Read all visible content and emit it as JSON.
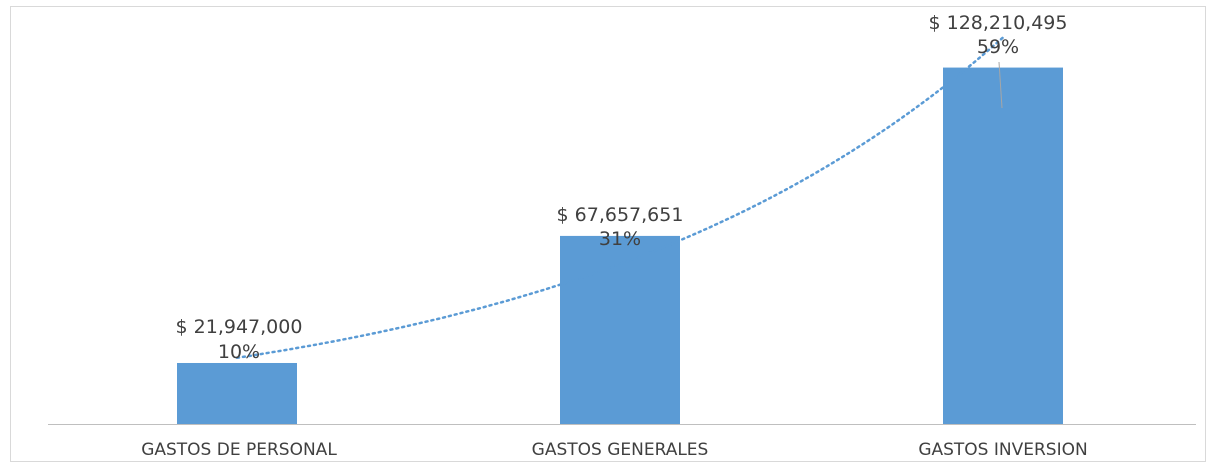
{
  "chart_data": {
    "type": "bar",
    "categories": [
      "GASTOS DE PERSONAL",
      "GASTOS GENERALES",
      "GASTOS INVERSION"
    ],
    "values": [
      21947000,
      67657651,
      128210495
    ],
    "value_labels": [
      "$ 21,947,000",
      "$ 67,657,651",
      "$ 128,210,495"
    ],
    "percent_labels": [
      "10%",
      "31%",
      "59%"
    ],
    "trendline": {
      "type": "exponential",
      "style": "dotted"
    },
    "ylim": [
      0,
      150000000
    ],
    "grid": false,
    "bar_color": "#5b9bd5",
    "trendline_color": "#5b9bd5"
  }
}
